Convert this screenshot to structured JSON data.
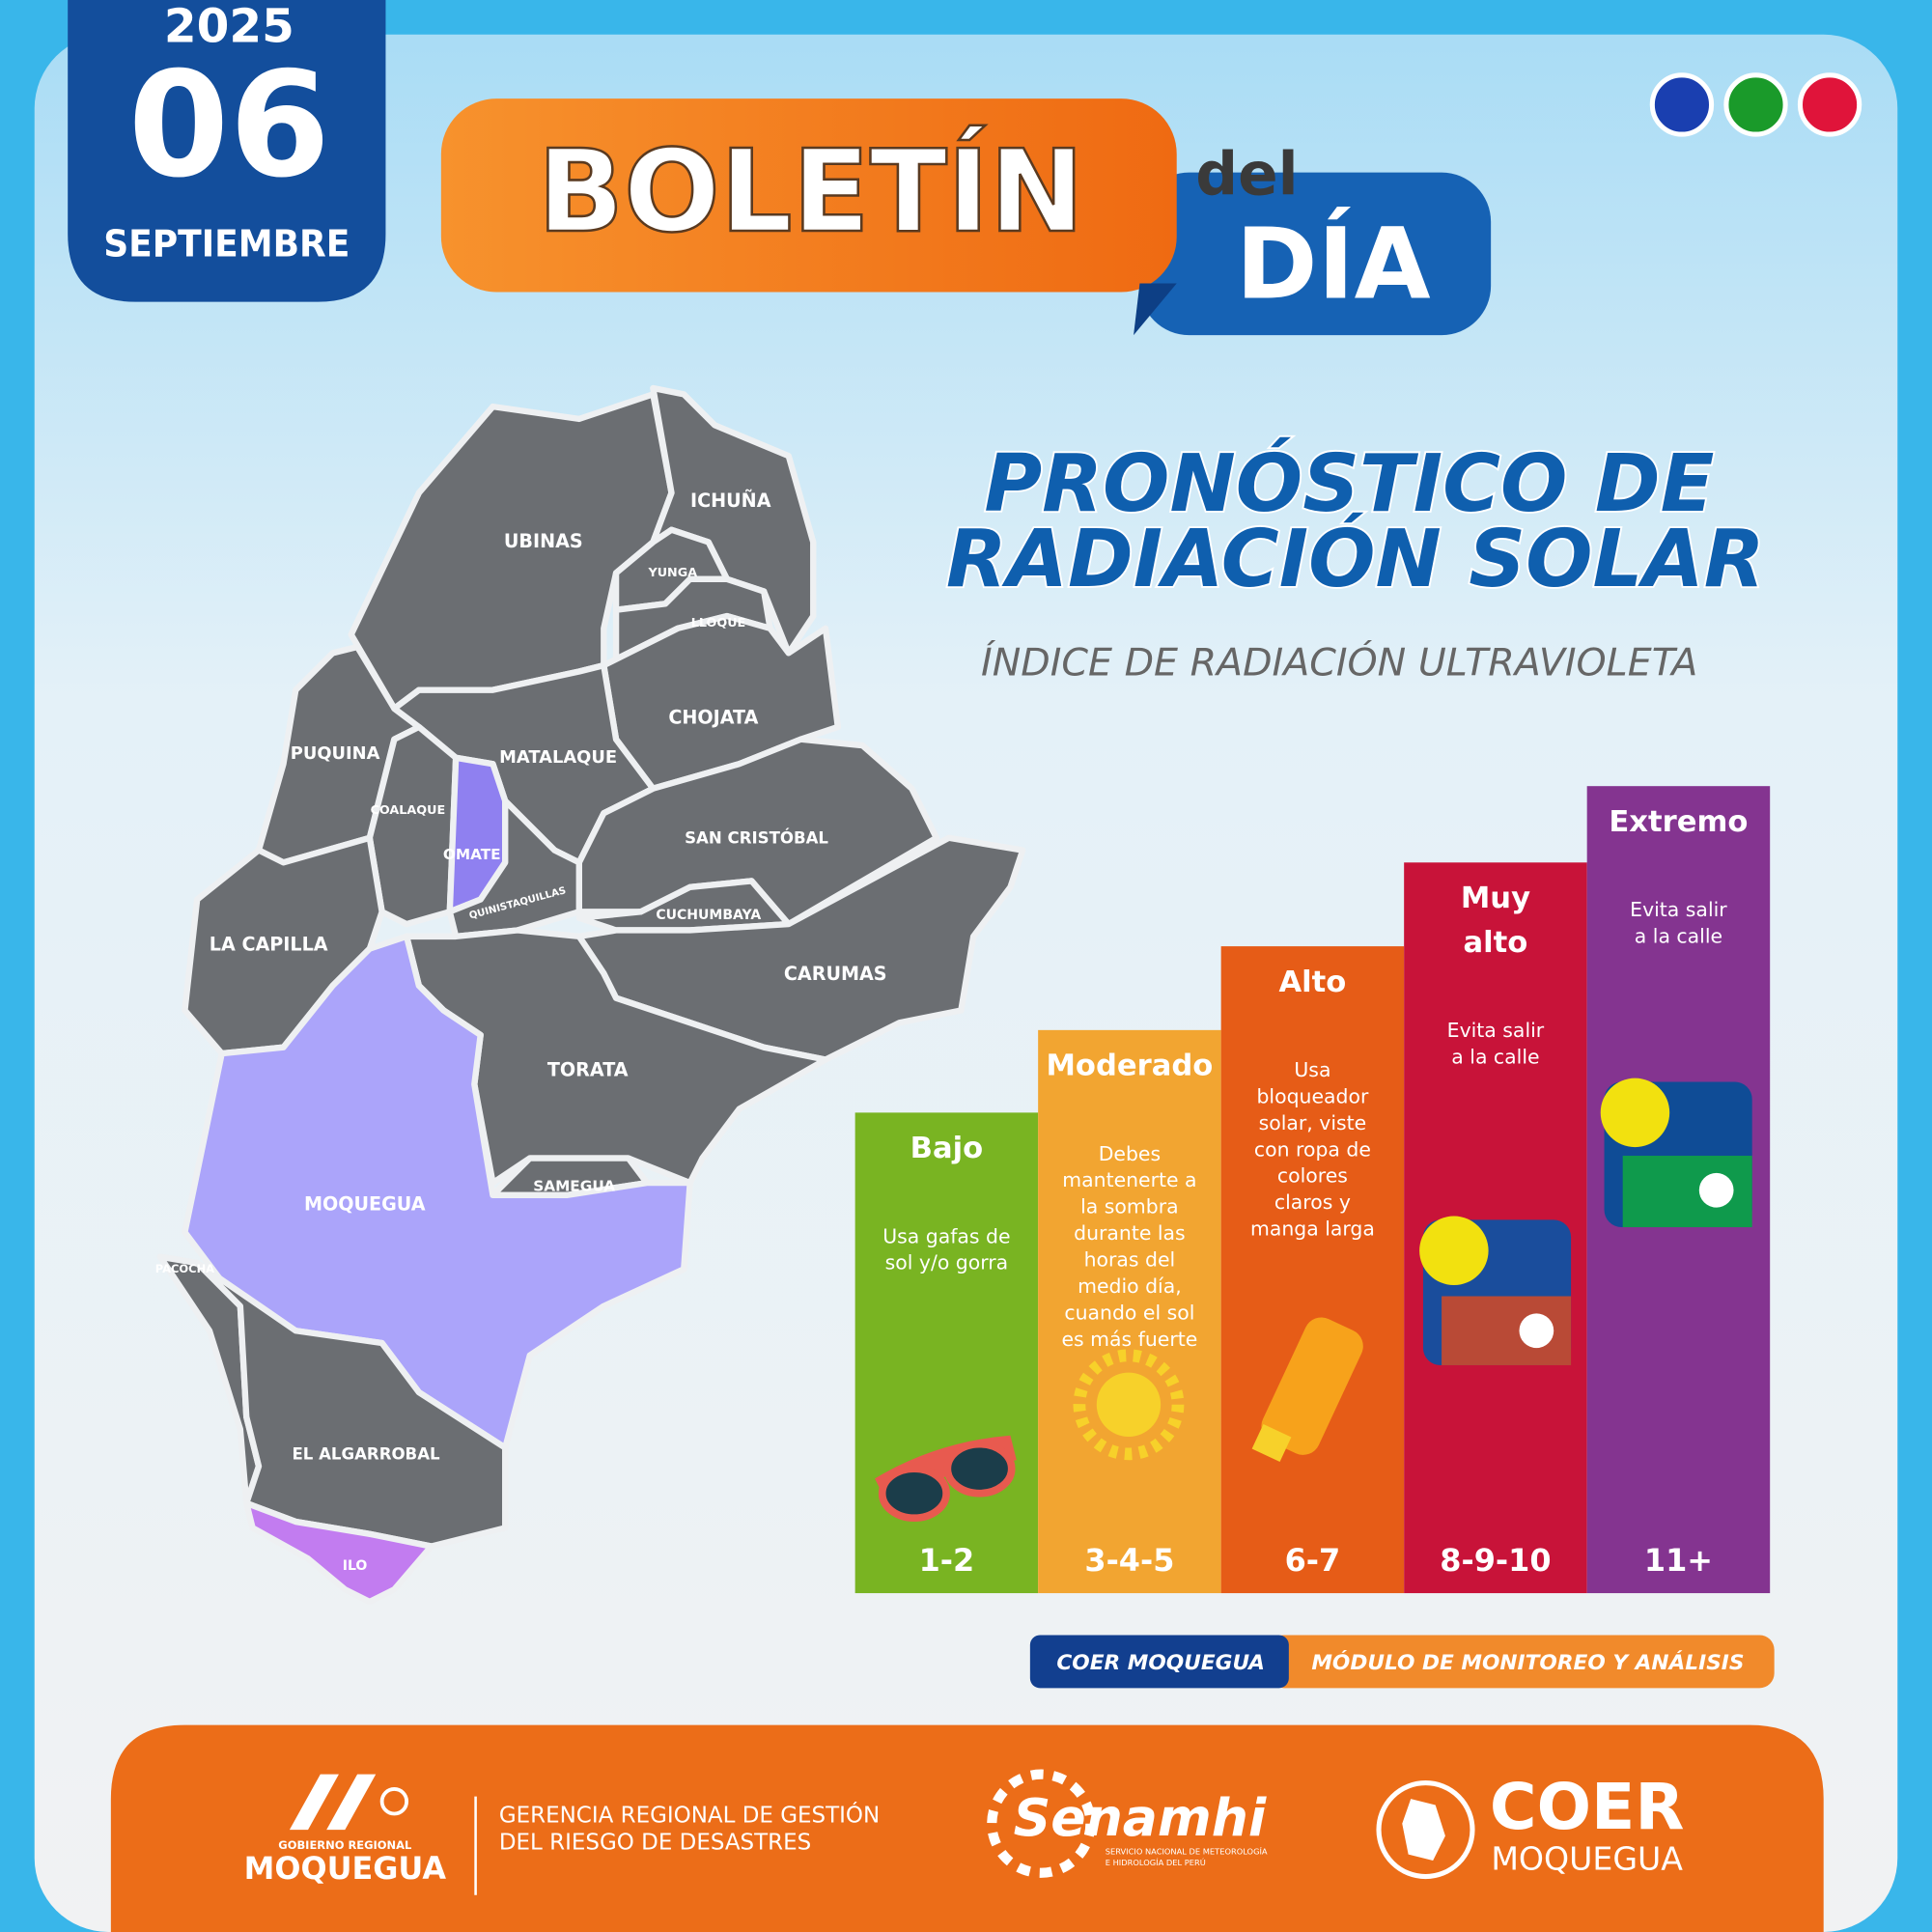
{
  "header": {
    "year": "2025",
    "day": "06",
    "month": "SEPTIEMBRE",
    "title_main": "BOLETÍN",
    "title_small": "del",
    "title_day": "DÍA"
  },
  "section": {
    "title_line1": "PRONÓSTICO DE",
    "title_line2": "RADIACIÓN SOLAR",
    "subtitle": "ÍNDICE DE RADIACIÓN ULTRAVIOLETA"
  },
  "map": {
    "districts": [
      {
        "label": "UBINAS",
        "color": "#6b6e72"
      },
      {
        "label": "ICHUÑA",
        "color": "#6b6e72"
      },
      {
        "label": "YUNGA",
        "color": "#6b6e72"
      },
      {
        "label": "LLOQUE",
        "color": "#6b6e72"
      },
      {
        "label": "CHOJATA",
        "color": "#6b6e72"
      },
      {
        "label": "PUQUINA",
        "color": "#6b6e72"
      },
      {
        "label": "MATALAQUE",
        "color": "#6b6e72"
      },
      {
        "label": "COALAQUE",
        "color": "#6b6e72"
      },
      {
        "label": "OMATE",
        "color": "#8f80f0"
      },
      {
        "label": "SAN CRISTÓBAL",
        "color": "#6b6e72"
      },
      {
        "label": "QUINISTAQUILLAS",
        "color": "#6b6e72"
      },
      {
        "label": "CUCHUMBAYA",
        "color": "#6b6e72"
      },
      {
        "label": "LA CAPILLA",
        "color": "#6b6e72"
      },
      {
        "label": "CARUMAS",
        "color": "#6b6e72"
      },
      {
        "label": "TORATA",
        "color": "#6b6e72"
      },
      {
        "label": "MOQUEGUA",
        "color": "#aba4fa"
      },
      {
        "label": "SAMEGUA",
        "color": "#6b6e72"
      },
      {
        "label": "PACOCHA",
        "color": "#6b6e72"
      },
      {
        "label": "EL ALGARROBAL",
        "color": "#6b6e72"
      },
      {
        "label": "ILO",
        "color": "#c27cf0"
      }
    ]
  },
  "scale": {
    "levels": [
      {
        "name": [
          "Bajo"
        ],
        "advice": [
          "Usa gafas de",
          "sol y/o gorra"
        ],
        "range": "1-2",
        "color": "#79b422"
      },
      {
        "name": [
          "Moderado"
        ],
        "advice": [
          "Debes",
          "mantenerte a",
          "la sombra",
          "durante las",
          "horas del",
          "medio día,",
          "cuando el sol",
          "es más fuerte"
        ],
        "range": "3-4-5",
        "color": "#f2a531"
      },
      {
        "name": [
          "Alto"
        ],
        "advice": [
          "Usa",
          "bloqueador",
          "solar, viste",
          "con ropa de",
          "colores",
          "claros y",
          "manga larga"
        ],
        "range": "6-7",
        "color": "#e65c17"
      },
      {
        "name": [
          "Muy",
          "alto"
        ],
        "advice": [
          "Evita salir",
          "a la calle"
        ],
        "range": "8-9-10",
        "color": "#c81339"
      },
      {
        "name": [
          "Extremo"
        ],
        "advice": [
          "Evita salir",
          "a la calle"
        ],
        "range": "11+",
        "color": "#843490"
      }
    ]
  },
  "tags": {
    "left": "COER MOQUEGUA",
    "right": "MÓDULO DE MONITOREO Y ANÁLISIS"
  },
  "footer": {
    "gore_small": "GOBIERNO REGIONAL",
    "gore_name": "MOQUEGUA",
    "gerencia_line1": "GERENCIA REGIONAL DE GESTIÓN",
    "gerencia_line2": "DEL RIESGO DE DESASTRES",
    "senamhi": "Senamhi",
    "senamhi_line1": "SERVICIO NACIONAL DE METEOROLOGÍA",
    "senamhi_line2": "E HIDROLOGÍA DEL PERÚ",
    "coer": "COER",
    "coer_sub": "MOQUEGUA"
  }
}
